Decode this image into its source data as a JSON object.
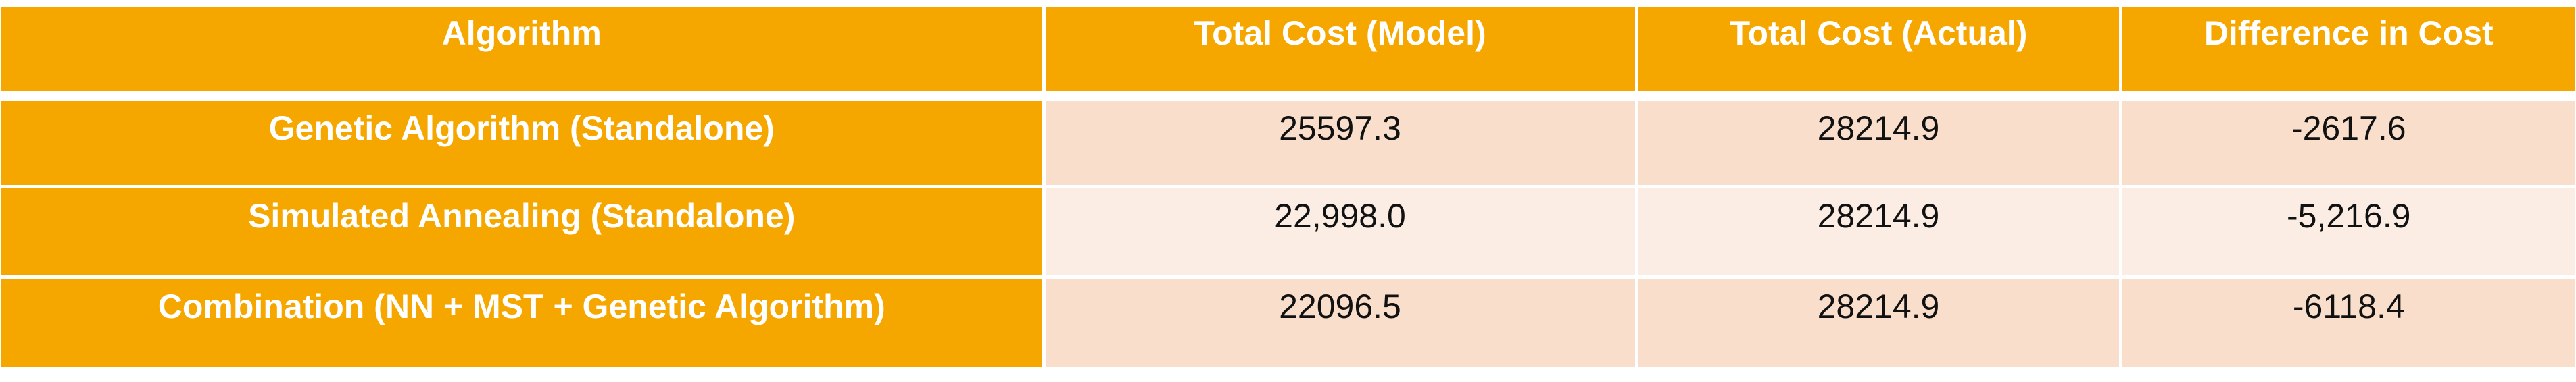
{
  "table": {
    "headers": [
      "Algorithm",
      "Total Cost (Model)",
      "Total Cost (Actual)",
      "Difference in Cost"
    ],
    "rows": [
      {
        "algorithm": "Genetic Algorithm (Standalone)",
        "model": "25597.3",
        "actual": "28214.9",
        "difference": "-2617.6"
      },
      {
        "algorithm": "Simulated Annealing (Standalone)",
        "model": "22,998.0",
        "actual": "28214.9",
        "difference": "-5,216.9"
      },
      {
        "algorithm": "Combination (NN + MST + Genetic Algorithm)",
        "model": "22096.5",
        "actual": "28214.9",
        "difference": "-6118.4"
      }
    ]
  },
  "colors": {
    "header_bg": "#F5A700",
    "header_text": "#FFFFFF",
    "row_dark_bg": "#F8DECB",
    "row_light_bg": "#FBEDE4"
  }
}
